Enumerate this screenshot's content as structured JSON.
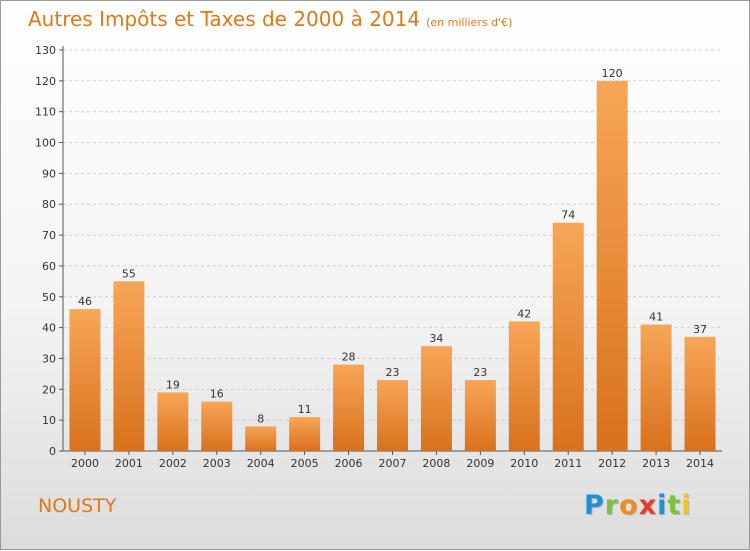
{
  "title": "Autres Impôts et Taxes de 2000 à 2014",
  "unit_note": "(en milliers d'€)",
  "location": "NOUSTY",
  "logo": {
    "letters": [
      "P",
      "r",
      "o",
      "x",
      "i",
      "t",
      "i"
    ],
    "colors": [
      "#1e90d8",
      "#7cc241",
      "#f08c1a",
      "#e53a2f",
      "#1e90d8",
      "#7cc241",
      "#f0c419"
    ]
  },
  "colors": {
    "accent": "#e07818",
    "bar_light": "#f7a657",
    "bar_dark": "#d9711c"
  },
  "chart_data": {
    "type": "bar",
    "title": "Autres Impôts et Taxes de 2000 à 2014",
    "categories": [
      "2000",
      "2001",
      "2002",
      "2003",
      "2004",
      "2005",
      "2006",
      "2007",
      "2008",
      "2009",
      "2010",
      "2011",
      "2012",
      "2013",
      "2014"
    ],
    "values": [
      46,
      55,
      19,
      16,
      8,
      11,
      28,
      23,
      34,
      23,
      42,
      74,
      120,
      41,
      37
    ],
    "ylim": [
      0,
      130
    ],
    "yticks": [
      0,
      10,
      20,
      30,
      40,
      50,
      60,
      70,
      80,
      90,
      100,
      110,
      120,
      130
    ],
    "grid": "horizontal dashed",
    "legend": "none"
  }
}
